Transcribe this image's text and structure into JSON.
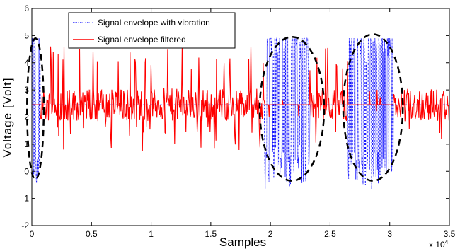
{
  "chart_data": {
    "type": "line",
    "xlabel": "Samples",
    "ylabel": "Voltage [Volt]",
    "x_multiplier_label": "x 10",
    "x_multiplier_exponent": "4",
    "xlim": [
      0,
      35000
    ],
    "ylim": [
      -2,
      6
    ],
    "x_ticks": [
      0,
      5000,
      10000,
      15000,
      20000,
      25000,
      30000,
      35000
    ],
    "x_tick_labels": [
      "0",
      "0.5",
      "1",
      "1.5",
      "2",
      "2.5",
      "3",
      "3.5"
    ],
    "y_ticks": [
      -2,
      -1,
      0,
      1,
      2,
      3,
      4,
      5,
      6
    ],
    "y_tick_labels": [
      "-2",
      "-1",
      "0",
      "1",
      "2",
      "3",
      "4",
      "5",
      "6"
    ],
    "grid": false,
    "legend_position": "top-left",
    "series": [
      {
        "name": "Signal envelope with vibration",
        "color": "#0000ff",
        "style": "dotted",
        "baseline": 2.45,
        "vibration_regions": [
          [
            0,
            700
          ],
          [
            19500,
            23300
          ],
          [
            26500,
            30300
          ]
        ],
        "vibration_range": [
          -1.2,
          4.9
        ]
      },
      {
        "name": "Signal envelope filtered",
        "color": "#ff0000",
        "style": "solid",
        "baseline": 2.45,
        "noise_range": [
          0.7,
          4.6
        ],
        "typical_band": [
          1.9,
          3.0
        ]
      }
    ],
    "annotations": [
      {
        "type": "dashed-ellipse",
        "center": [
          300,
          2.3
        ],
        "radius": [
          700,
          2.6
        ]
      },
      {
        "type": "dashed-ellipse",
        "center": [
          21800,
          2.3
        ],
        "radius": [
          2700,
          2.65
        ]
      },
      {
        "type": "dashed-ellipse",
        "center": [
          28600,
          2.35
        ],
        "radius": [
          2500,
          2.7
        ]
      }
    ]
  }
}
